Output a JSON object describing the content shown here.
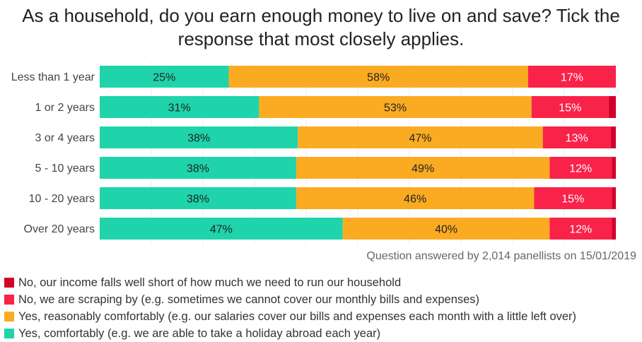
{
  "chart_data": {
    "type": "bar",
    "orientation": "horizontal",
    "stacked": true,
    "title": "As a household, do you earn enough money to live on and save? Tick the response that most closely applies.",
    "categories": [
      "Less than 1 year",
      "1 or 2 years",
      "3 or 4 years",
      "5 - 10 years",
      "10 - 20 years",
      "Over 20 years"
    ],
    "series": [
      {
        "name": "Yes, comfortably (e.g. we are able to take a holiday abroad each year)",
        "color": "#1fd4aa",
        "values": [
          25,
          31,
          38,
          38,
          38,
          47
        ],
        "labels": [
          "25%",
          "31%",
          "38%",
          "38%",
          "38%",
          "47%"
        ]
      },
      {
        "name": "Yes, reasonably comfortably (e.g. our salaries cover our bills and expenses each month with a little left over)",
        "color": "#fbab22",
        "values": [
          58,
          53,
          47,
          49,
          46,
          40
        ],
        "labels": [
          "58%",
          "53%",
          "47%",
          "49%",
          "46%",
          "40%"
        ]
      },
      {
        "name": "No, we are scraping by (e.g. sometimes we cannot cover our monthly bills and expenses)",
        "color": "#f92249",
        "values": [
          17,
          15,
          13,
          12,
          15,
          12
        ],
        "labels": [
          "17%",
          "15%",
          "13%",
          "12%",
          "15%",
          "12%"
        ]
      },
      {
        "name": "No, our income falls well short of how much we need to run our household",
        "color": "#d4002a",
        "values": [
          0,
          1.4,
          1,
          0.8,
          0.8,
          0.8
        ],
        "labels": [
          "",
          "",
          "",
          "",
          "",
          ""
        ]
      }
    ],
    "xlim": [
      0,
      100
    ],
    "grid": true,
    "legend_placement": "bottom-left",
    "note": "Question answered by 2,014 panellists on 15/01/2019"
  }
}
